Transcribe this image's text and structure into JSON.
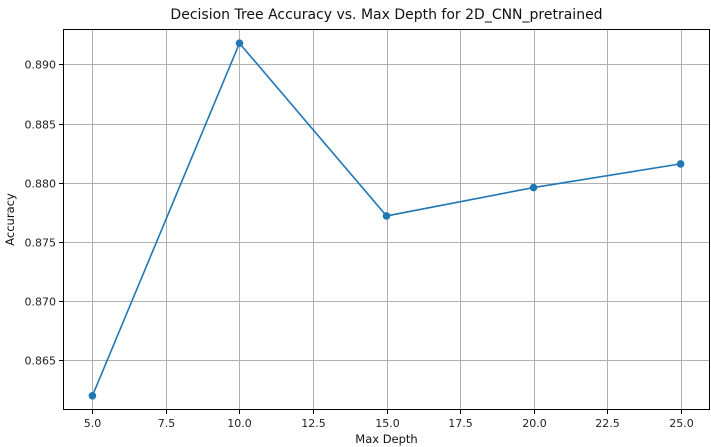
{
  "chart_data": {
    "type": "line",
    "title": "Decision Tree Accuracy vs. Max Depth for 2D_CNN_pretrained",
    "xlabel": "Max Depth",
    "ylabel": "Accuracy",
    "x": [
      5,
      10,
      15,
      20,
      25
    ],
    "series": [
      {
        "values": [
          0.862,
          0.8918,
          0.8772,
          0.8796,
          0.8816
        ],
        "color": "#1f77b4",
        "marker": "circle"
      }
    ],
    "xlim": [
      4.0,
      26.0
    ],
    "ylim": [
      0.8608,
      0.893
    ],
    "xticks": [
      5.0,
      7.5,
      10.0,
      12.5,
      15.0,
      17.5,
      20.0,
      22.5,
      25.0
    ],
    "xtick_labels": [
      "5.0",
      "7.5",
      "10.0",
      "12.5",
      "15.0",
      "17.5",
      "20.0",
      "22.5",
      "25.0"
    ],
    "yticks": [
      0.865,
      0.87,
      0.875,
      0.88,
      0.885,
      0.89
    ],
    "ytick_labels": [
      "0.865",
      "0.870",
      "0.875",
      "0.880",
      "0.885",
      "0.890"
    ],
    "grid": true,
    "legend": "none"
  }
}
